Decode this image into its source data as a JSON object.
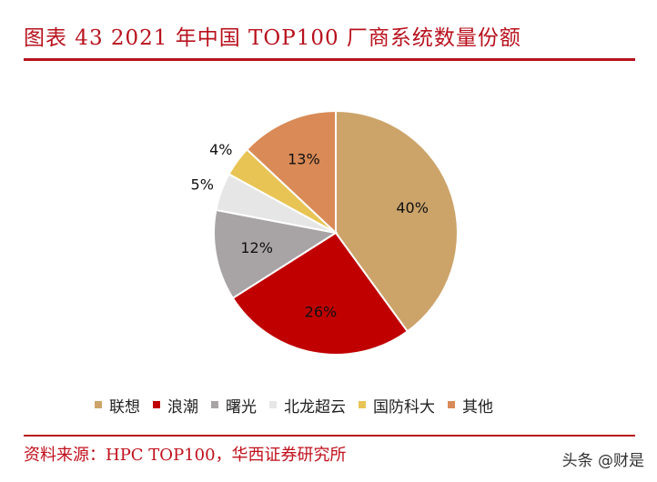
{
  "header": {
    "title": "图表 43  2021 年中国 TOP100 厂商系统数量份额"
  },
  "chart_data": {
    "type": "pie",
    "title": "",
    "categories": [
      "联想",
      "浪潮",
      "曙光",
      "北龙超云",
      "国防科大",
      "其他"
    ],
    "values": [
      40,
      26,
      12,
      5,
      4,
      13
    ],
    "labels": [
      "40%",
      "26%",
      "12%",
      "5%",
      "4%",
      "13%"
    ],
    "colors": [
      "#cca46a",
      "#c00000",
      "#a8a4a5",
      "#e6e6e6",
      "#e8c454",
      "#d98a56"
    ],
    "legend_position": "bottom"
  },
  "footer": {
    "source": "资料来源：HPC TOP100，华西证券研究所",
    "watermark": "头条 @财是"
  }
}
